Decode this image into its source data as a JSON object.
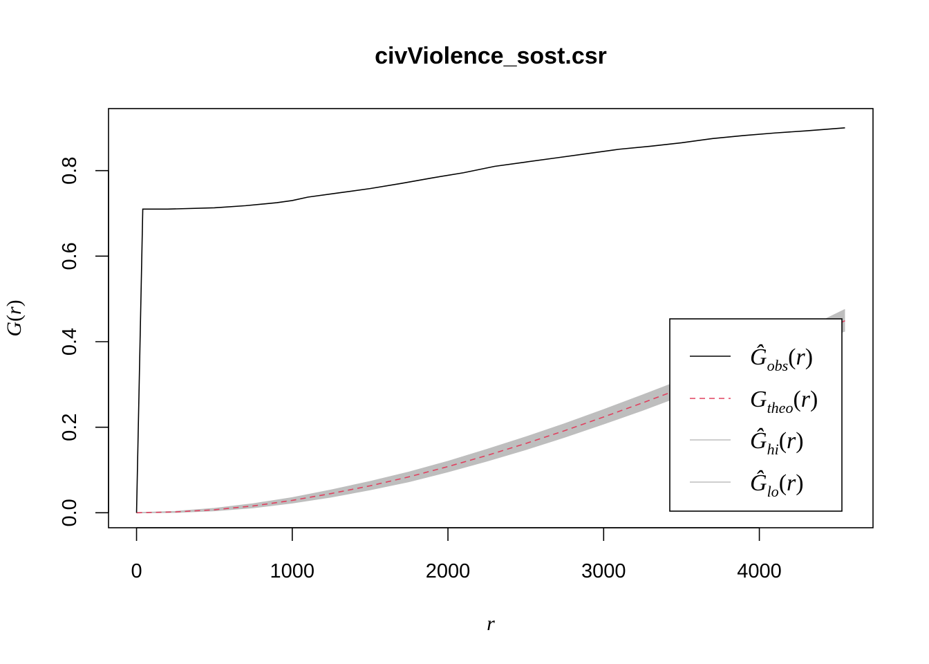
{
  "chart_data": {
    "type": "line",
    "title": "civViolence_sost.csr",
    "xlabel": "r",
    "ylabel_main": "G",
    "ylabel_arg": "r",
    "xlim": [
      -180,
      4730
    ],
    "ylim": [
      -0.035,
      0.945
    ],
    "x_ticks": [
      0,
      1000,
      2000,
      3000,
      4000
    ],
    "x_tick_labels": [
      "0",
      "1000",
      "2000",
      "3000",
      "4000"
    ],
    "y_ticks": [
      0.0,
      0.2,
      0.4,
      0.6,
      0.8
    ],
    "y_tick_labels": [
      "0.0",
      "0.2",
      "0.4",
      "0.6",
      "0.8"
    ],
    "legend_position": "bottom-right",
    "grid": false,
    "series": [
      {
        "key": "obs",
        "legend_main": "Ĝ",
        "legend_sub": "obs",
        "legend_arg": "r",
        "color": "#000000",
        "dash": "solid",
        "x": [
          0,
          40,
          200,
          500,
          700,
          900,
          1000,
          1100,
          1300,
          1500,
          1700,
          1900,
          2100,
          2300,
          2500,
          2700,
          2900,
          3100,
          3300,
          3500,
          3700,
          3900,
          4100,
          4300,
          4550
        ],
        "y": [
          0.0,
          0.71,
          0.71,
          0.713,
          0.718,
          0.725,
          0.73,
          0.738,
          0.748,
          0.758,
          0.77,
          0.783,
          0.795,
          0.81,
          0.82,
          0.83,
          0.84,
          0.85,
          0.857,
          0.865,
          0.875,
          0.882,
          0.888,
          0.893,
          0.9
        ]
      },
      {
        "key": "theo",
        "legend_main": "G",
        "legend_sub": "theo",
        "legend_arg": "r",
        "color": "#e0405e",
        "dash": "dashed",
        "x": [
          0,
          250,
          500,
          750,
          1000,
          1250,
          1500,
          1750,
          2000,
          2250,
          2500,
          2750,
          3000,
          3250,
          3500,
          3750,
          4000,
          4250,
          4550
        ],
        "y": [
          0.0,
          0.002,
          0.007,
          0.016,
          0.029,
          0.045,
          0.063,
          0.084,
          0.108,
          0.134,
          0.162,
          0.192,
          0.224,
          0.257,
          0.291,
          0.327,
          0.364,
          0.401,
          0.449
        ]
      },
      {
        "key": "hi",
        "legend_main": "Ĝ",
        "legend_sub": "hi",
        "legend_arg": "r",
        "color": "#bebebe",
        "dash": "solid",
        "x": [
          0,
          250,
          500,
          750,
          1000,
          1250,
          1500,
          1750,
          2000,
          2250,
          2500,
          2750,
          3000,
          3250,
          3500,
          3750,
          4000,
          4250,
          4550
        ],
        "y": [
          0.0,
          0.003,
          0.01,
          0.021,
          0.035,
          0.053,
          0.073,
          0.095,
          0.12,
          0.148,
          0.177,
          0.208,
          0.241,
          0.275,
          0.31,
          0.347,
          0.384,
          0.422,
          0.475
        ]
      },
      {
        "key": "lo",
        "legend_main": "Ĝ",
        "legend_sub": "lo",
        "legend_arg": "r",
        "color": "#bebebe",
        "dash": "solid",
        "x": [
          0,
          250,
          500,
          750,
          1000,
          1250,
          1500,
          1750,
          2000,
          2250,
          2500,
          2750,
          3000,
          3250,
          3500,
          3750,
          4000,
          4250,
          4550
        ],
        "y": [
          0.0,
          0.001,
          0.005,
          0.012,
          0.023,
          0.037,
          0.054,
          0.073,
          0.096,
          0.121,
          0.148,
          0.177,
          0.208,
          0.24,
          0.274,
          0.309,
          0.345,
          0.382,
          0.425
        ]
      }
    ]
  }
}
